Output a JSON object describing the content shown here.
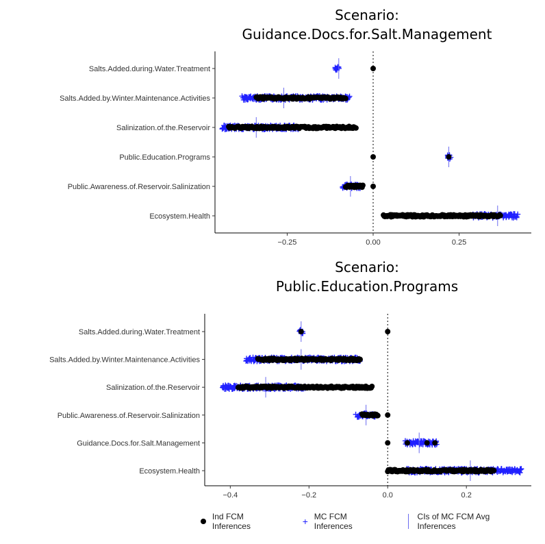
{
  "chart_data": [
    {
      "type": "scatter",
      "title_line1": "Scenario:",
      "title_line2": "Guidance.Docs.for.Salt.Management",
      "categories": [
        "Salts.Added.during.Water.Treatment",
        "Salts.Added.by.Winter.Maintenance.Activities",
        "Salinization.of.the.Reservoir",
        "Public.Education.Programs",
        "Public.Awareness.of.Reservoir.Salinization",
        "Ecosystem.Health"
      ],
      "xlim": [
        -0.46,
        0.46
      ],
      "xticks": [
        -0.25,
        0.0,
        0.25
      ],
      "xtick_labels": [
        "−0.25",
        "0.00",
        "0.25"
      ],
      "zero_line": 0,
      "ind_fcm_ranges": [
        [
          0.0,
          0.0
        ],
        [
          -0.34,
          -0.08
        ],
        [
          -0.42,
          -0.05
        ],
        [
          0.0,
          0.0
        ],
        [
          -0.08,
          -0.03
        ],
        [
          0.03,
          0.37
        ]
      ],
      "ind_fcm_points": [
        [],
        [],
        [],
        [
          0.22
        ],
        [
          0.0
        ],
        []
      ],
      "mc_fcm_ranges": [
        [
          -0.11,
          -0.1
        ],
        [
          -0.38,
          -0.07
        ],
        [
          -0.44,
          -0.22
        ],
        [
          0.215,
          0.225
        ],
        [
          -0.09,
          -0.04
        ],
        [
          0.29,
          0.42
        ]
      ],
      "ci_lines": [
        -0.1,
        -0.26,
        -0.34,
        0.22,
        -0.066,
        0.362
      ]
    },
    {
      "type": "scatter",
      "title_line1": "Scenario:",
      "title_line2": "Public.Education.Programs",
      "categories": [
        "Salts.Added.during.Water.Treatment",
        "Salts.Added.by.Winter.Maintenance.Activities",
        "Salinization.of.the.Reservoir",
        "Public.Awareness.of.Reservoir.Salinization",
        "Guidance.Docs.for.Salt.Management",
        "Ecosystem.Health"
      ],
      "xlim": [
        -0.465,
        0.365
      ],
      "xticks": [
        -0.4,
        -0.2,
        0.0,
        0.2
      ],
      "xtick_labels": [
        "−0.4",
        "−0.2",
        "0.0",
        "0.2"
      ],
      "zero_line": 0,
      "ind_fcm_ranges": [
        [
          0.0,
          0.0
        ],
        [
          -0.33,
          -0.07
        ],
        [
          -0.38,
          -0.04
        ],
        [
          -0.065,
          -0.025
        ],
        [
          0.0,
          0.0
        ],
        [
          0.0,
          0.27
        ]
      ],
      "ind_fcm_points": [
        [
          -0.22
        ],
        [],
        [],
        [
          0.0
        ],
        [
          0.05,
          0.1,
          0.12
        ],
        []
      ],
      "mc_fcm_ranges": [
        [
          -0.225,
          -0.215
        ],
        [
          -0.36,
          -0.07
        ],
        [
          -0.42,
          -0.21
        ],
        [
          -0.08,
          -0.03
        ],
        [
          0.045,
          0.125
        ],
        [
          0.05,
          0.34
        ]
      ],
      "ci_lines": [
        -0.22,
        -0.22,
        -0.31,
        -0.055,
        0.08,
        0.21
      ]
    }
  ],
  "legend": {
    "ind_label": "Ind FCM Inferences",
    "mc_label": "MC FCM Inferences",
    "ci_label": "CIs of MC FCM Avg Inferences"
  },
  "colors": {
    "mc": "#2020ff",
    "ci": "#6a6af0",
    "ind": "#000000"
  }
}
